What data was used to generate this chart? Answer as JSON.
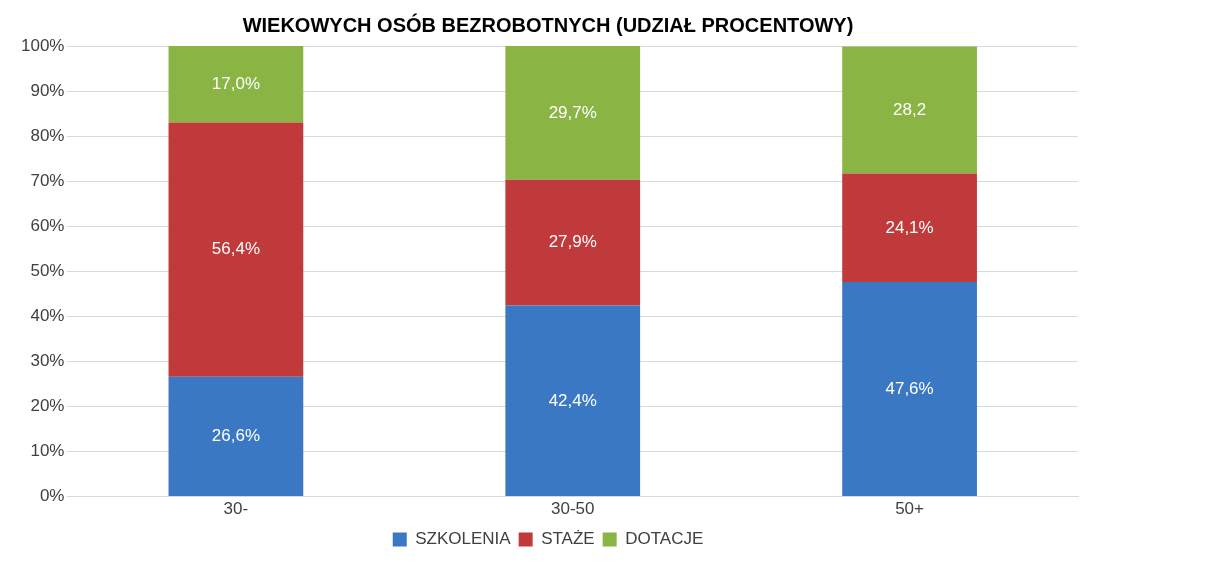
{
  "chart_data": {
    "type": "bar",
    "stacked": true,
    "title": "WIEKOWYCH OSÓB BEZROBOTNYCH (UDZIAŁ PROCENTOWY)",
    "categories": [
      "30-",
      "30-50",
      "50+"
    ],
    "series": [
      {
        "name": "SZKOLENIA",
        "color": "#3a78c4",
        "values": [
          26.6,
          42.4,
          47.6
        ],
        "value_labels": [
          "26,6%",
          "42,4%",
          "47,6%"
        ]
      },
      {
        "name": "STAŻE",
        "color": "#c0393b",
        "values": [
          56.4,
          27.9,
          24.1
        ],
        "value_labels": [
          "56,4%",
          "27,9%",
          "24,1%"
        ]
      },
      {
        "name": "DOTACJE",
        "color": "#8ab544",
        "values": [
          17.0,
          29.7,
          28.2
        ],
        "value_labels": [
          "17,0%",
          "29,7%",
          "28,2"
        ]
      }
    ],
    "ylim": [
      0,
      100
    ],
    "yticks": [
      {
        "value": 0,
        "label": "0%"
      },
      {
        "value": 10,
        "label": "10%"
      },
      {
        "value": 20,
        "label": "20%"
      },
      {
        "value": 30,
        "label": "30%"
      },
      {
        "value": 40,
        "label": "40%"
      },
      {
        "value": 50,
        "label": "50%"
      },
      {
        "value": 60,
        "label": "60%"
      },
      {
        "value": 70,
        "label": "70%"
      },
      {
        "value": 80,
        "label": "80%"
      },
      {
        "value": 90,
        "label": "90%"
      },
      {
        "value": 100,
        "label": "100%"
      }
    ],
    "grid": "y",
    "legend": "bottom"
  }
}
